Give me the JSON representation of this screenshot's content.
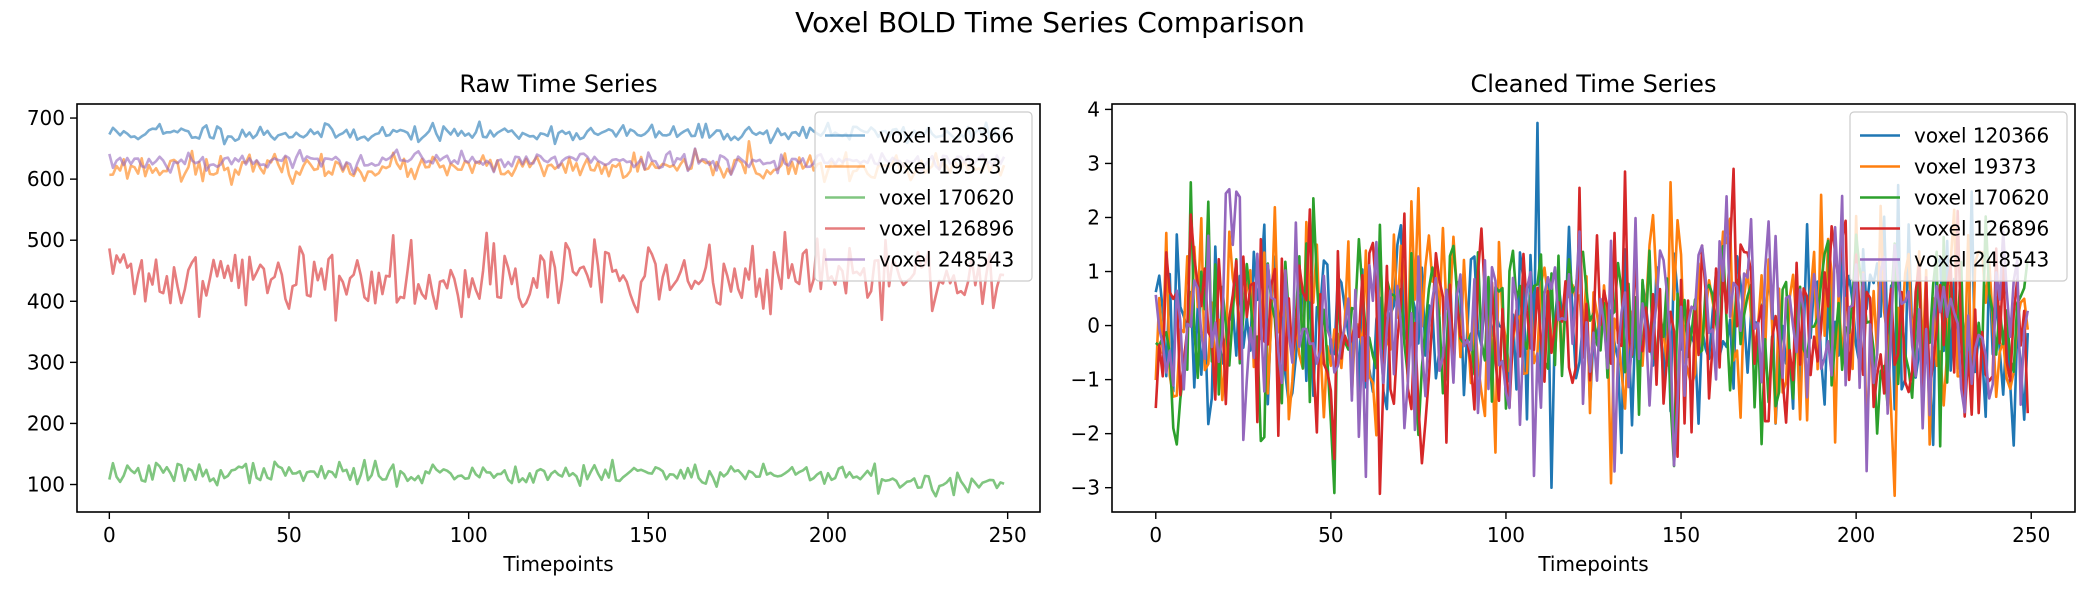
{
  "figure": {
    "suptitle": "Voxel BOLD Time Series Comparison"
  },
  "chart_data": [
    {
      "type": "line",
      "title": "Raw Time Series",
      "xlabel": "Timepoints",
      "ylabel": "",
      "xlim": [
        -9,
        259
      ],
      "ylim": [
        55,
        723
      ],
      "xticks": [
        0,
        50,
        100,
        150,
        200,
        250
      ],
      "yticks": [
        100,
        200,
        300,
        400,
        500,
        600,
        700
      ],
      "grid": false,
      "legend_position": "upper right",
      "line_alpha": 0.6,
      "n_points": 250,
      "series": [
        {
          "name": "voxel 120366",
          "color": "#1f77b4",
          "mean": 675,
          "amp": 7,
          "seed": 11,
          "spikes": [
            [
              14,
              690
            ],
            [
              27,
              688
            ],
            [
              200,
              692
            ],
            [
              215,
              678
            ]
          ]
        },
        {
          "name": "voxel 19373",
          "color": "#ff7f0e",
          "mean": 618,
          "amp": 10,
          "seed": 23,
          "spikes": [
            [
              23,
              646
            ],
            [
              178,
              662
            ],
            [
              188,
              642
            ]
          ]
        },
        {
          "name": "voxel 170620",
          "color": "#2ca02c",
          "mean": 118,
          "amp": 9,
          "seed": 37,
          "shift": [
            [
              214,
              -18
            ]
          ],
          "spikes": [
            [
              5,
              131
            ],
            [
              40,
              135
            ],
            [
              140,
              140
            ],
            [
              213,
              134
            ],
            [
              220,
              95
            ]
          ]
        },
        {
          "name": "voxel 126896",
          "color": "#d62728",
          "mean": 440,
          "amp": 28,
          "seed": 41,
          "spikes": [
            [
              2,
              475
            ],
            [
              84,
              500
            ],
            [
              105,
              512
            ],
            [
              135,
              501
            ],
            [
              10,
              400
            ],
            [
              50,
              388
            ],
            [
              170,
              395
            ]
          ]
        },
        {
          "name": "voxel 248543",
          "color": "#9467bd",
          "mean": 630,
          "amp": 8,
          "seed": 53,
          "spikes": [
            [
              80,
              648
            ],
            [
              155,
              640
            ]
          ]
        }
      ]
    },
    {
      "type": "line",
      "title": "Cleaned Time Series",
      "xlabel": "Timepoints",
      "ylabel": "",
      "xlim": [
        -12.5,
        262.5
      ],
      "ylim": [
        -3.45,
        4.1
      ],
      "xticks": [
        0,
        50,
        100,
        150,
        200,
        250
      ],
      "yticks": [
        -3,
        -2,
        -1,
        0,
        1,
        2,
        3,
        4
      ],
      "grid": false,
      "legend_position": "upper right",
      "line_alpha": 1.0,
      "n_points": 250,
      "series": [
        {
          "name": "voxel 120366",
          "color": "#1f77b4",
          "mean": 0,
          "amp": 1.0,
          "seed": 61,
          "spikes": [
            [
              109,
              3.75
            ],
            [
              113,
              -3.0
            ],
            [
              212,
              2.6
            ]
          ]
        },
        {
          "name": "voxel 19373",
          "color": "#ff7f0e",
          "mean": 0,
          "amp": 1.0,
          "seed": 67,
          "spikes": [
            [
              211,
              -3.15
            ],
            [
              73,
              2.3
            ],
            [
              97,
              -2.35
            ],
            [
              221,
              -2.2
            ]
          ]
        },
        {
          "name": "voxel 170620",
          "color": "#2ca02c",
          "mean": 0,
          "amp": 1.0,
          "seed": 71,
          "spikes": [
            [
              10,
              2.65
            ],
            [
              51,
              -3.1
            ],
            [
              148,
              -2.6
            ],
            [
              6,
              -2.2
            ]
          ]
        },
        {
          "name": "voxel 126896",
          "color": "#d62728",
          "mean": 0,
          "amp": 1.0,
          "seed": 79,
          "spikes": [
            [
              134,
              2.85
            ],
            [
              165,
              2.9
            ],
            [
              121,
              2.55
            ]
          ]
        },
        {
          "name": "voxel 248543",
          "color": "#9467bd",
          "mean": 0,
          "amp": 1.0,
          "seed": 83,
          "spikes": [
            [
              60,
              -2.8
            ],
            [
              131,
              -2.7
            ],
            [
              196,
              2.4
            ]
          ]
        }
      ]
    }
  ]
}
